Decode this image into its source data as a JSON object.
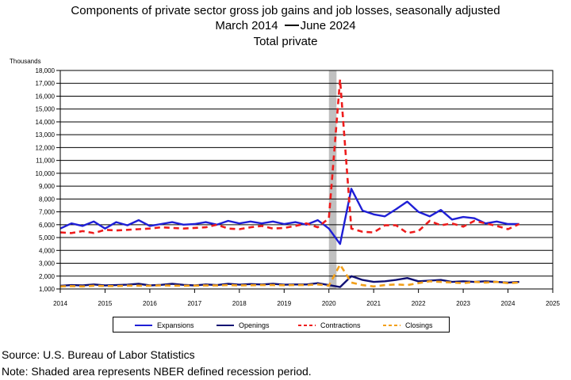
{
  "title": {
    "line1": "Components of private sector gross job gains and job losses, seasonally adjusted",
    "line2_start": "March 2014",
    "line2_end": "June 2024",
    "line3": "Total private"
  },
  "footer": {
    "source": "Source: U.S. Bureau of Labor Statistics",
    "note": "Note: Shaded area represents NBER defined recession period."
  },
  "chart_data": {
    "type": "line",
    "ylabel": "Thousands",
    "ylim": [
      1000,
      18000
    ],
    "yticks": [
      1000,
      2000,
      3000,
      4000,
      5000,
      6000,
      7000,
      8000,
      9000,
      10000,
      11000,
      12000,
      13000,
      14000,
      15000,
      16000,
      17000,
      18000
    ],
    "ytick_labels": [
      "1,000",
      "2,000",
      "3,000",
      "4,000",
      "5,000",
      "6,000",
      "7,000",
      "8,000",
      "9,000",
      "10,000",
      "11,000",
      "12,000",
      "13,000",
      "14,000",
      "15,000",
      "16,000",
      "17,000",
      "18,000"
    ],
    "xlim": [
      2014,
      2025
    ],
    "xticks": [
      "2014",
      "2015",
      "2016",
      "2017",
      "2018",
      "2019",
      "2020",
      "2021",
      "2022",
      "2023",
      "2024",
      "2025"
    ],
    "grid": "horizontal",
    "legend_position": "bottom",
    "recession": {
      "start": 2020.0,
      "end": 2020.17
    },
    "x": [
      2014.0,
      2014.25,
      2014.5,
      2014.75,
      2015.0,
      2015.25,
      2015.5,
      2015.75,
      2016.0,
      2016.25,
      2016.5,
      2016.75,
      2017.0,
      2017.25,
      2017.5,
      2017.75,
      2018.0,
      2018.25,
      2018.5,
      2018.75,
      2019.0,
      2019.25,
      2019.5,
      2019.75,
      2020.0,
      2020.25,
      2020.5,
      2020.75,
      2021.0,
      2021.25,
      2021.5,
      2021.75,
      2022.0,
      2022.25,
      2022.5,
      2022.75,
      2023.0,
      2023.25,
      2023.5,
      2023.75,
      2024.0,
      2024.25
    ],
    "series": [
      {
        "name": "Expansions",
        "color": "#1f1fd6",
        "style": "solid",
        "values": [
          5700,
          6100,
          5900,
          6250,
          5700,
          6200,
          5950,
          6350,
          5900,
          6050,
          6200,
          6000,
          6050,
          6200,
          6000,
          6300,
          6100,
          6250,
          6100,
          6250,
          6050,
          6200,
          6000,
          6350,
          5700,
          4500,
          8800,
          7100,
          6800,
          6650,
          7200,
          7800,
          7000,
          6650,
          7150,
          6400,
          6600,
          6500,
          6100,
          6250,
          6050,
          6050
        ]
      },
      {
        "name": "Openings",
        "color": "#101073",
        "style": "solid",
        "values": [
          1250,
          1300,
          1280,
          1350,
          1280,
          1300,
          1330,
          1400,
          1280,
          1320,
          1400,
          1320,
          1280,
          1350,
          1300,
          1400,
          1330,
          1380,
          1350,
          1400,
          1330,
          1350,
          1350,
          1450,
          1300,
          1150,
          2000,
          1700,
          1550,
          1600,
          1700,
          1850,
          1600,
          1650,
          1700,
          1550,
          1600,
          1550,
          1600,
          1550,
          1500,
          1550
        ]
      },
      {
        "name": "Contractions",
        "color": "#ee1c1c",
        "style": "dashed",
        "values": [
          5400,
          5350,
          5500,
          5350,
          5600,
          5550,
          5600,
          5650,
          5700,
          5800,
          5750,
          5700,
          5750,
          5800,
          6000,
          5700,
          5650,
          5800,
          5900,
          5700,
          5750,
          5900,
          6100,
          5800,
          6500,
          17300,
          5700,
          5450,
          5400,
          5950,
          5950,
          5350,
          5500,
          6300,
          5950,
          6100,
          5850,
          6300,
          6100,
          5900,
          5650,
          6050
        ]
      },
      {
        "name": "Closings",
        "color": "#f2a01a",
        "style": "dashed",
        "values": [
          1200,
          1220,
          1200,
          1250,
          1230,
          1220,
          1260,
          1250,
          1250,
          1280,
          1260,
          1250,
          1260,
          1280,
          1270,
          1300,
          1280,
          1290,
          1300,
          1300,
          1290,
          1300,
          1300,
          1350,
          1250,
          2900,
          1500,
          1300,
          1200,
          1300,
          1350,
          1300,
          1450,
          1600,
          1550,
          1500,
          1450,
          1550,
          1500,
          1550,
          1450,
          1500
        ]
      }
    ]
  }
}
